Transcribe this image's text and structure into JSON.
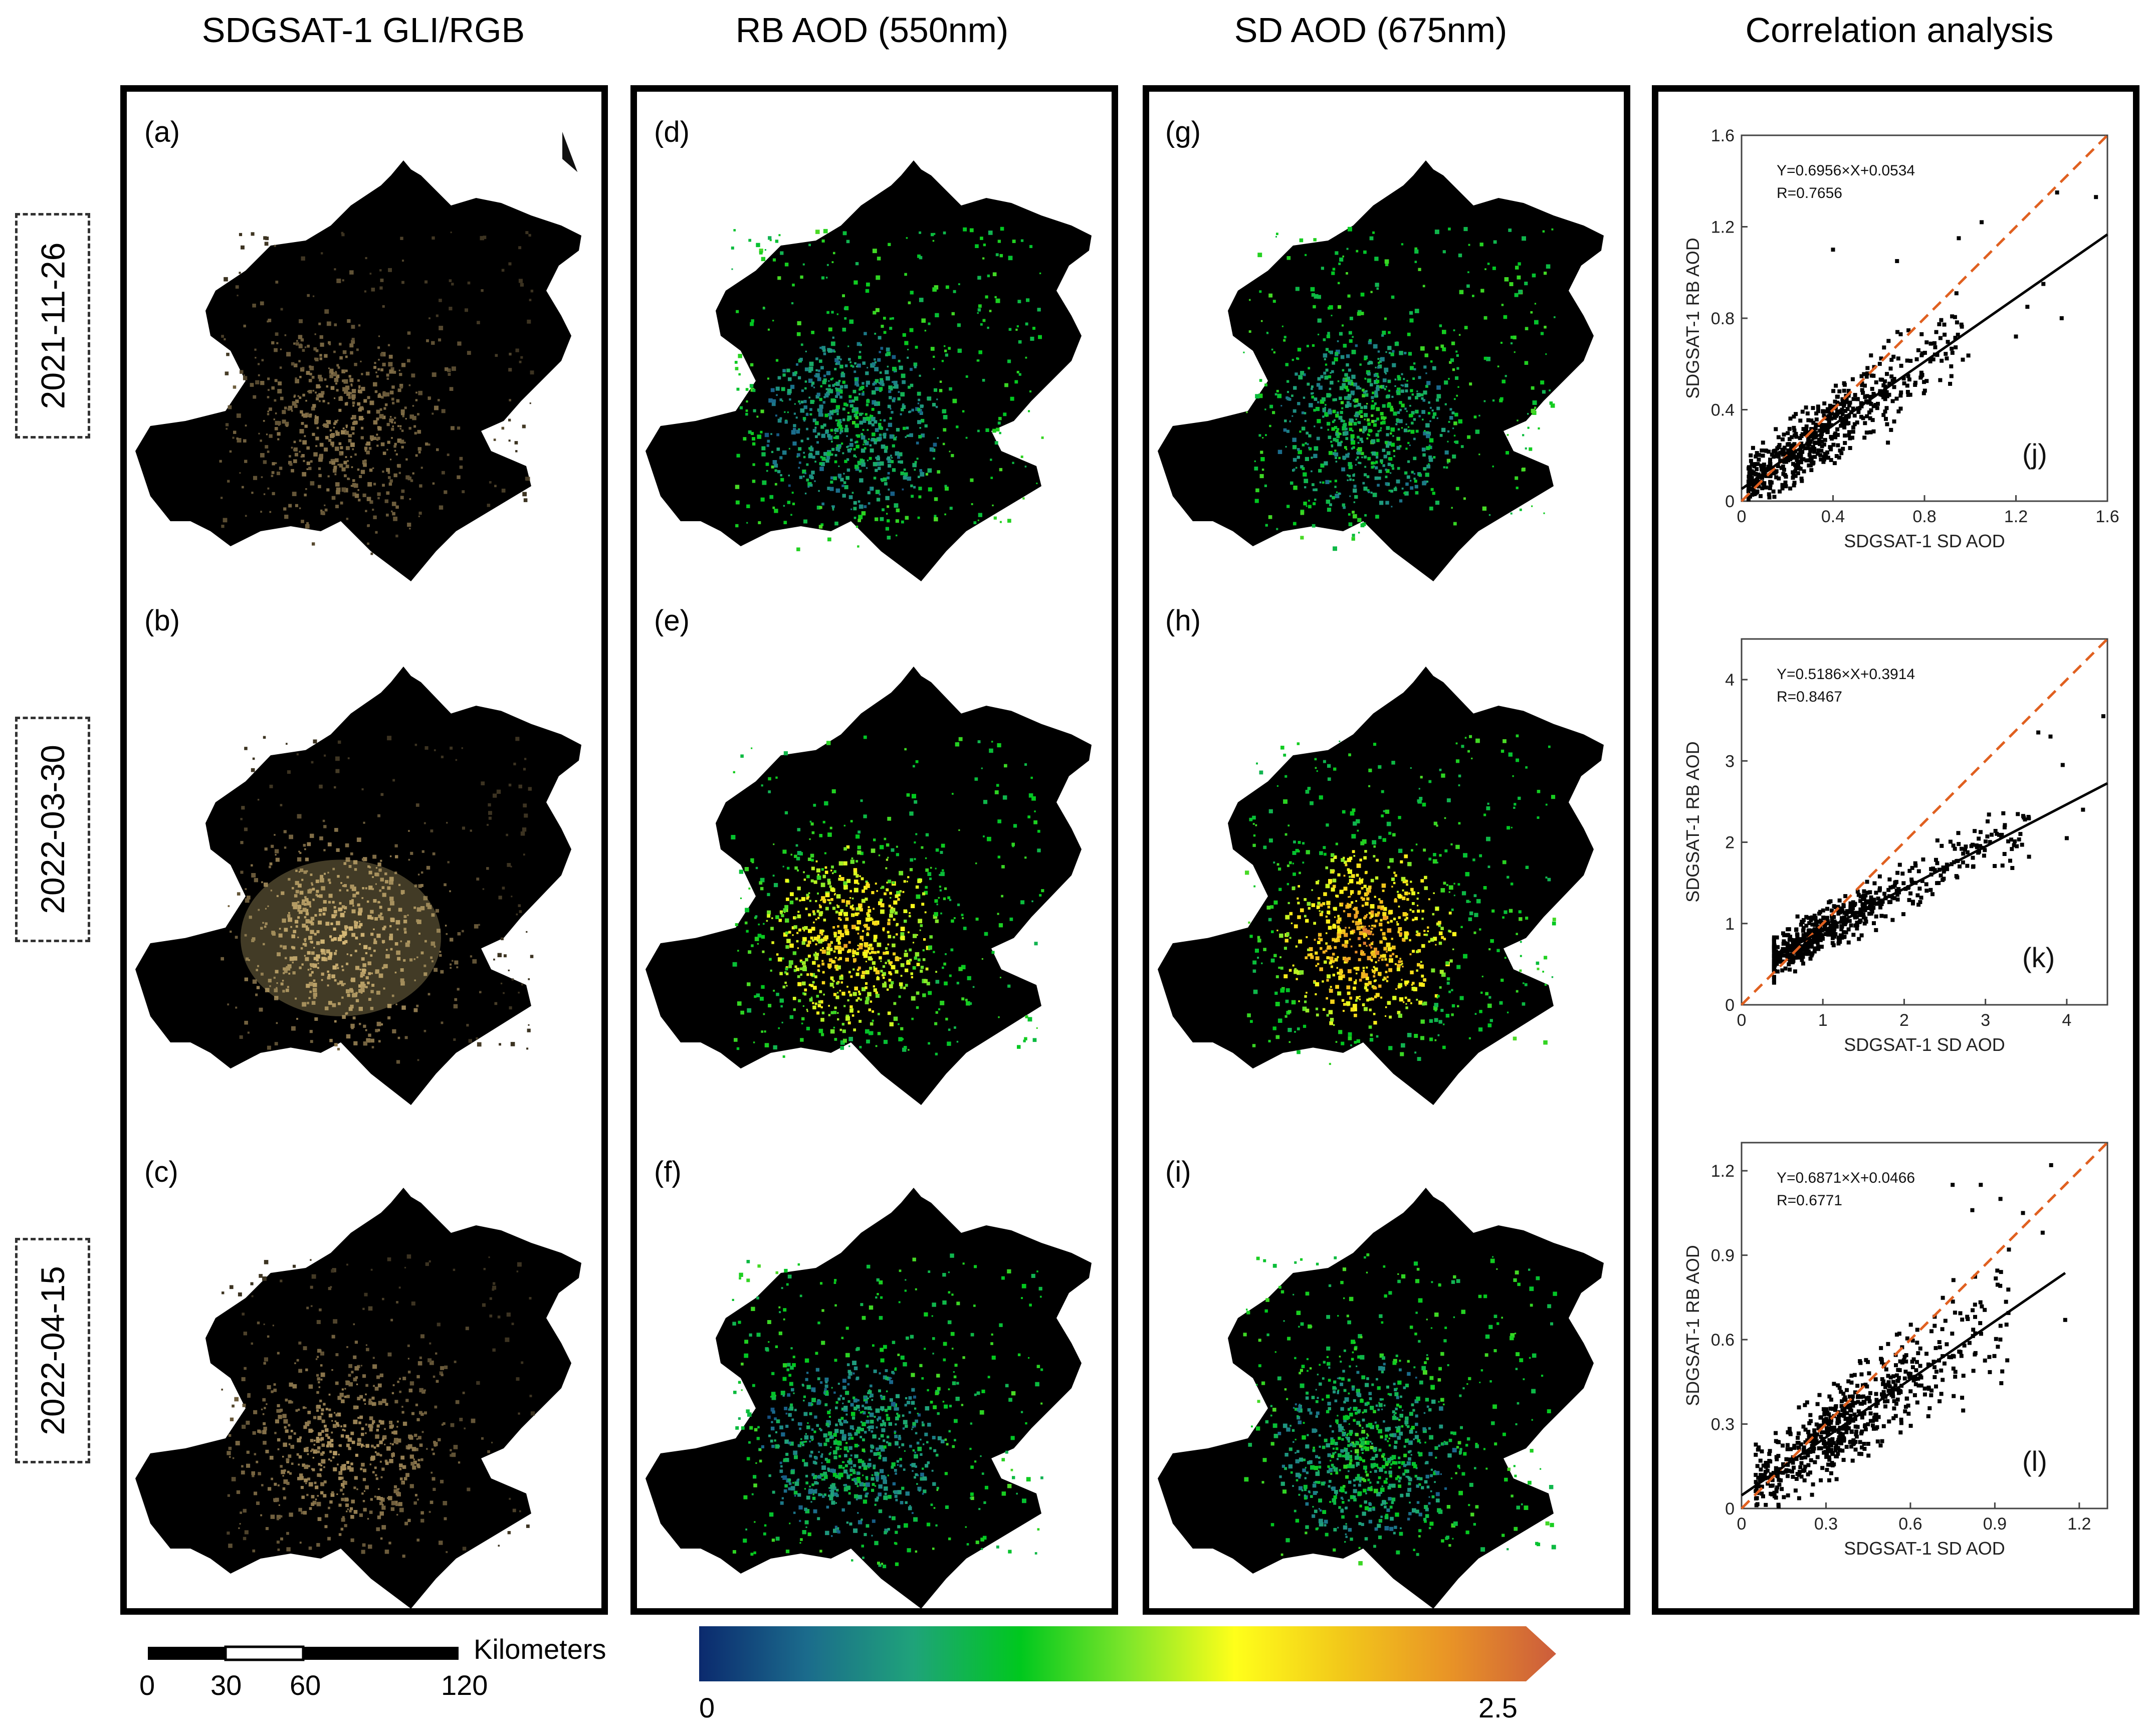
{
  "columns": [
    {
      "title": "SDGSAT-1 GLI/RGB"
    },
    {
      "title": "RB AOD  (550nm)"
    },
    {
      "title": "SD AOD  (675nm)"
    },
    {
      "title": "Correlation analysis"
    }
  ],
  "dates": [
    "2021-11-26",
    "2022-03-30",
    "2022-04-15"
  ],
  "panels": {
    "rgb": [
      "(a)",
      "(b)",
      "(c)"
    ],
    "rb": [
      "(d)",
      "(e)",
      "(f)"
    ],
    "sd": [
      "(g)",
      "(h)",
      "(i)"
    ]
  },
  "north_arrow": "N",
  "scalebar": {
    "unit": "Kilometers",
    "ticks": [
      "0",
      "30",
      "60",
      "120"
    ],
    "tick_values": [
      0,
      30,
      60,
      120
    ]
  },
  "colorbar": {
    "min_label": "0",
    "max_label": "2.5",
    "min": 0,
    "max": 2.5,
    "colors": [
      "#0b2a6e",
      "#1b6b8c",
      "#1fa37a",
      "#00c81e",
      "#7fe62a",
      "#ffff1a",
      "#f2c81a",
      "#e99426",
      "#cc5c3c"
    ]
  },
  "colors": {
    "scatter": "#000000",
    "fit_line": "#000000",
    "one_to_one": "#e06020"
  },
  "chart_data": [
    {
      "type": "scatter",
      "tag": "(j)",
      "xlabel": "SDGSAT-1 SD AOD",
      "ylabel": "SDGSAT-1 RB AOD",
      "xlim": [
        0,
        1.6
      ],
      "ylim": [
        0,
        1.6
      ],
      "xticks": [
        0,
        0.4,
        0.8,
        1.2,
        1.6
      ],
      "yticks": [
        0,
        0.4,
        0.8,
        1.2,
        1.6
      ],
      "xtick_labels": [
        "0",
        "0.4",
        "0.8",
        "1.2",
        "1.6"
      ],
      "ytick_labels": [
        "0",
        "0.4",
        "0.8",
        "1.2",
        "1.6"
      ],
      "equation": "Y=0.6956×X+0.0534",
      "r_text": "R=0.7656",
      "slope": 0.6956,
      "intercept": 0.0534,
      "fit_range": [
        0,
        1.6
      ],
      "cluster": {
        "n": 620,
        "xmin": 0.03,
        "xmax": 1.0,
        "xmode": 0.35,
        "noise": 0.12
      },
      "outliers": [
        [
          1.38,
          1.35
        ],
        [
          0.68,
          1.05
        ],
        [
          1.2,
          0.72
        ],
        [
          1.25,
          0.85
        ],
        [
          1.32,
          0.95
        ],
        [
          0.4,
          1.1
        ],
        [
          1.05,
          1.22
        ],
        [
          0.95,
          1.15
        ],
        [
          1.4,
          0.8
        ],
        [
          1.55,
          1.33
        ]
      ]
    },
    {
      "type": "scatter",
      "tag": "(k)",
      "xlabel": "SDGSAT-1 SD AOD",
      "ylabel": "SDGSAT-1 RB AOD",
      "xlim": [
        0,
        4.5
      ],
      "ylim": [
        0,
        4.5
      ],
      "xticks": [
        0,
        1,
        2,
        3,
        4
      ],
      "yticks": [
        0,
        1,
        2,
        3,
        4
      ],
      "xtick_labels": [
        "0",
        "1",
        "2",
        "3",
        "4"
      ],
      "ytick_labels": [
        "0",
        "1",
        "2",
        "3",
        "4"
      ],
      "equation": "Y=0.5186×X+0.3914",
      "r_text": "R=0.8467",
      "slope": 0.5186,
      "intercept": 0.3914,
      "fit_range": [
        0.4,
        4.5
      ],
      "cluster": {
        "n": 650,
        "xmin": 0.4,
        "xmax": 3.6,
        "xmode": 0.9,
        "noise": 0.22
      },
      "outliers": [
        [
          4.45,
          3.55
        ],
        [
          3.8,
          3.3
        ],
        [
          3.95,
          2.95
        ],
        [
          3.65,
          3.35
        ],
        [
          4.2,
          2.4
        ],
        [
          4.0,
          2.05
        ]
      ]
    },
    {
      "type": "scatter",
      "tag": "(l)",
      "xlabel": "SDGSAT-1 SD AOD",
      "ylabel": "SDGSAT-1 RB AOD",
      "xlim": [
        0,
        1.3
      ],
      "ylim": [
        0,
        1.3
      ],
      "xticks": [
        0,
        0.3,
        0.6,
        0.9,
        1.2
      ],
      "yticks": [
        0,
        0.3,
        0.6,
        0.9,
        1.2
      ],
      "xtick_labels": [
        "0",
        "0.3",
        "0.6",
        "0.9",
        "1.2"
      ],
      "ytick_labels": [
        "0",
        "0.3",
        "0.6",
        "0.9",
        "1.2"
      ],
      "equation": "Y=0.6871×X+0.0466",
      "r_text": "R=0.6771",
      "slope": 0.6871,
      "intercept": 0.0466,
      "fit_range": [
        0,
        1.15
      ],
      "cluster": {
        "n": 650,
        "xmin": 0.05,
        "xmax": 0.95,
        "xmode": 0.4,
        "noise": 0.12
      },
      "outliers": [
        [
          0.85,
          1.15
        ],
        [
          1.1,
          1.22
        ],
        [
          0.92,
          1.1
        ],
        [
          1.0,
          1.05
        ],
        [
          0.75,
          1.15
        ],
        [
          1.15,
          0.67
        ],
        [
          0.95,
          0.92
        ],
        [
          0.82,
          1.06
        ],
        [
          1.07,
          0.98
        ]
      ]
    }
  ]
}
